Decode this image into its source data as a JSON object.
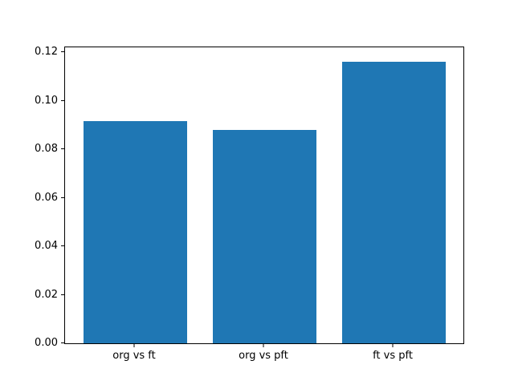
{
  "chart_data": {
    "type": "bar",
    "categories": [
      "org vs ft",
      "org vs pft",
      "ft vs pft"
    ],
    "values": [
      0.0915,
      0.0878,
      0.1162
    ],
    "title": "",
    "xlabel": "",
    "ylabel": "",
    "ylim": [
      0,
      0.122
    ],
    "yticks": [
      0.0,
      0.02,
      0.04,
      0.06,
      0.08,
      0.1,
      0.12
    ],
    "ytick_label_format_decimals": 2,
    "bar_color": "#1f77b4",
    "bar_width_fraction": 0.8,
    "x_margin_fraction": 0.05,
    "grid": false,
    "legend": null,
    "background_color": "#ffffff",
    "spine_color": "#000000"
  }
}
